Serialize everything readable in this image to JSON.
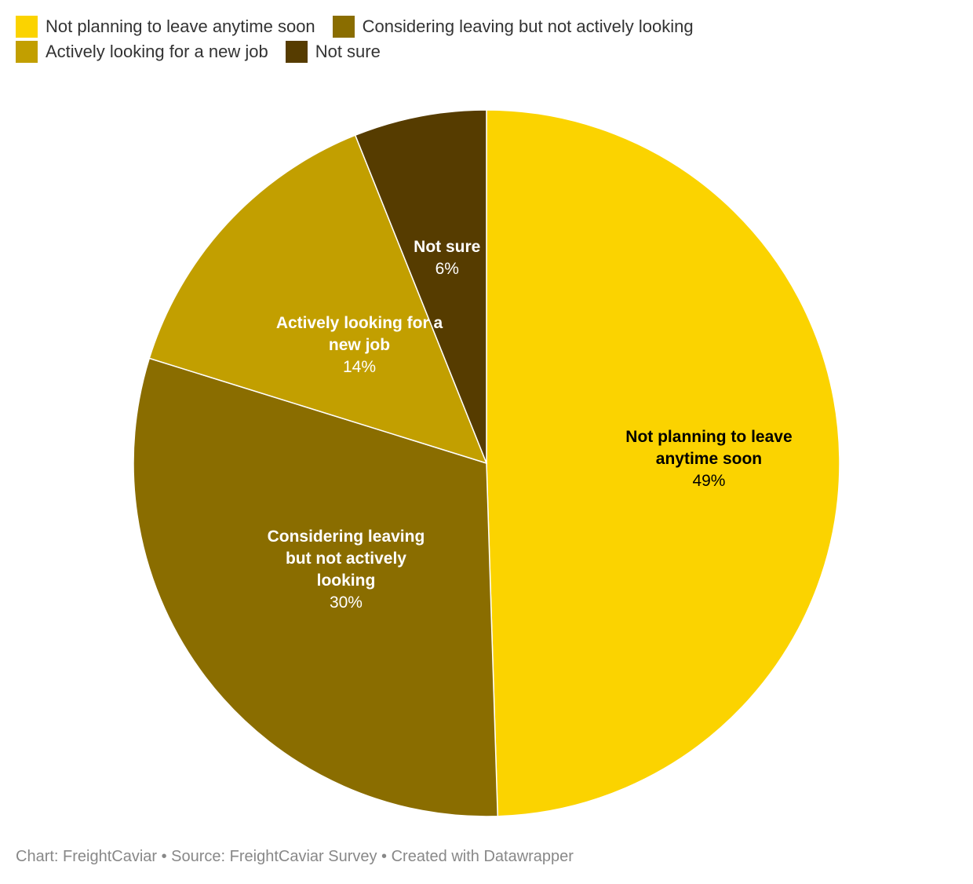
{
  "legend": {
    "items": [
      {
        "label": "Not planning to leave anytime soon",
        "color": "#FBD300"
      },
      {
        "label": "Considering leaving but not actively looking",
        "color": "#8A6D00"
      },
      {
        "label": "Actively looking for a new job",
        "color": "#C29F00"
      },
      {
        "label": "Not sure",
        "color": "#563C00"
      }
    ]
  },
  "chart_data": {
    "type": "pie",
    "slices": [
      {
        "name": "Not planning to leave anytime soon",
        "value": 49,
        "label": "49%",
        "color": "#FBD300",
        "text_color": "#000000",
        "label_lines": [
          "Not planning to leave",
          "anytime soon"
        ]
      },
      {
        "name": "Considering leaving but not actively looking",
        "value": 30,
        "label": "30%",
        "color": "#8A6D00",
        "text_color": "#ffffff",
        "label_lines": [
          "Considering leaving",
          "but not actively",
          "looking"
        ]
      },
      {
        "name": "Actively looking for a new job",
        "value": 14,
        "label": "14%",
        "color": "#C29F00",
        "text_color": "#ffffff",
        "label_lines": [
          "Actively looking for a",
          "new job"
        ]
      },
      {
        "name": "Not sure",
        "value": 6,
        "label": "6%",
        "color": "#563C00",
        "text_color": "#ffffff",
        "label_lines": [
          "Not sure"
        ]
      }
    ],
    "start": "12 o'clock",
    "direction": "clockwise"
  },
  "footer": {
    "text": "Chart: FreightCaviar • Source: FreightCaviar Survey • Created with Datawrapper"
  }
}
